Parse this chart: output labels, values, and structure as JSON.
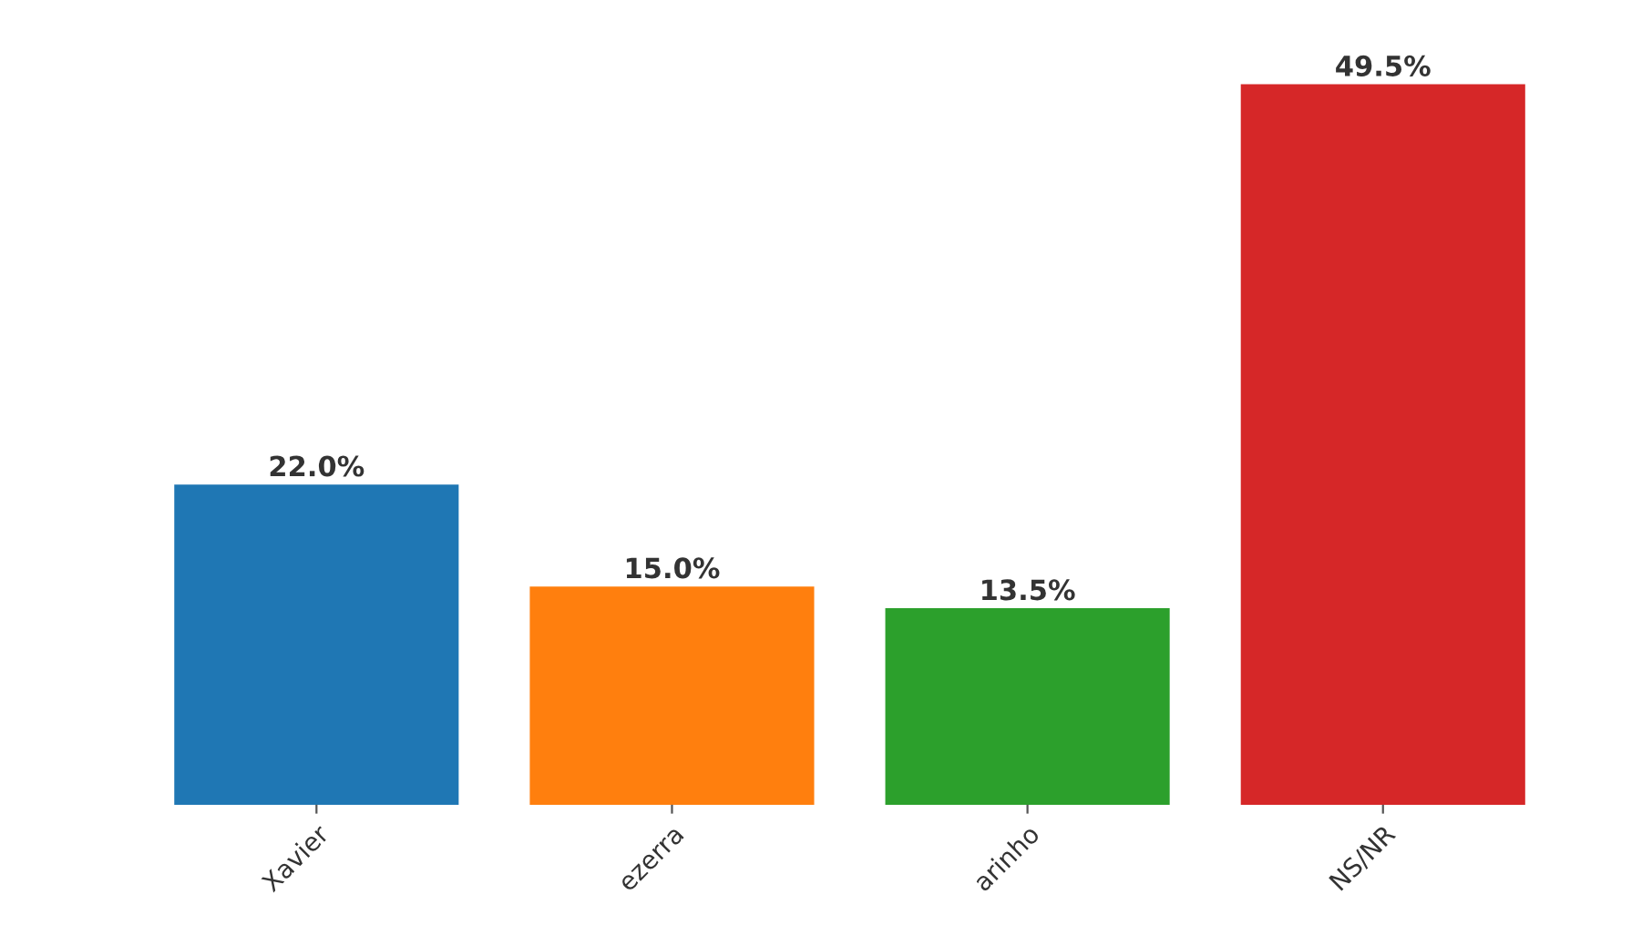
{
  "chart_data": {
    "type": "bar",
    "categories": [
      "Xavier",
      "ezerra",
      "arinho",
      "NS/NR"
    ],
    "values": [
      22.0,
      15.0,
      13.5,
      49.5
    ],
    "colors": [
      "#1f77b4",
      "#ff7f0e",
      "#2ca02c",
      "#d62728"
    ],
    "value_labels": [
      "22.0%",
      "15.0%",
      "13.5%",
      "49.5%"
    ],
    "tick_labels": "x"
  }
}
